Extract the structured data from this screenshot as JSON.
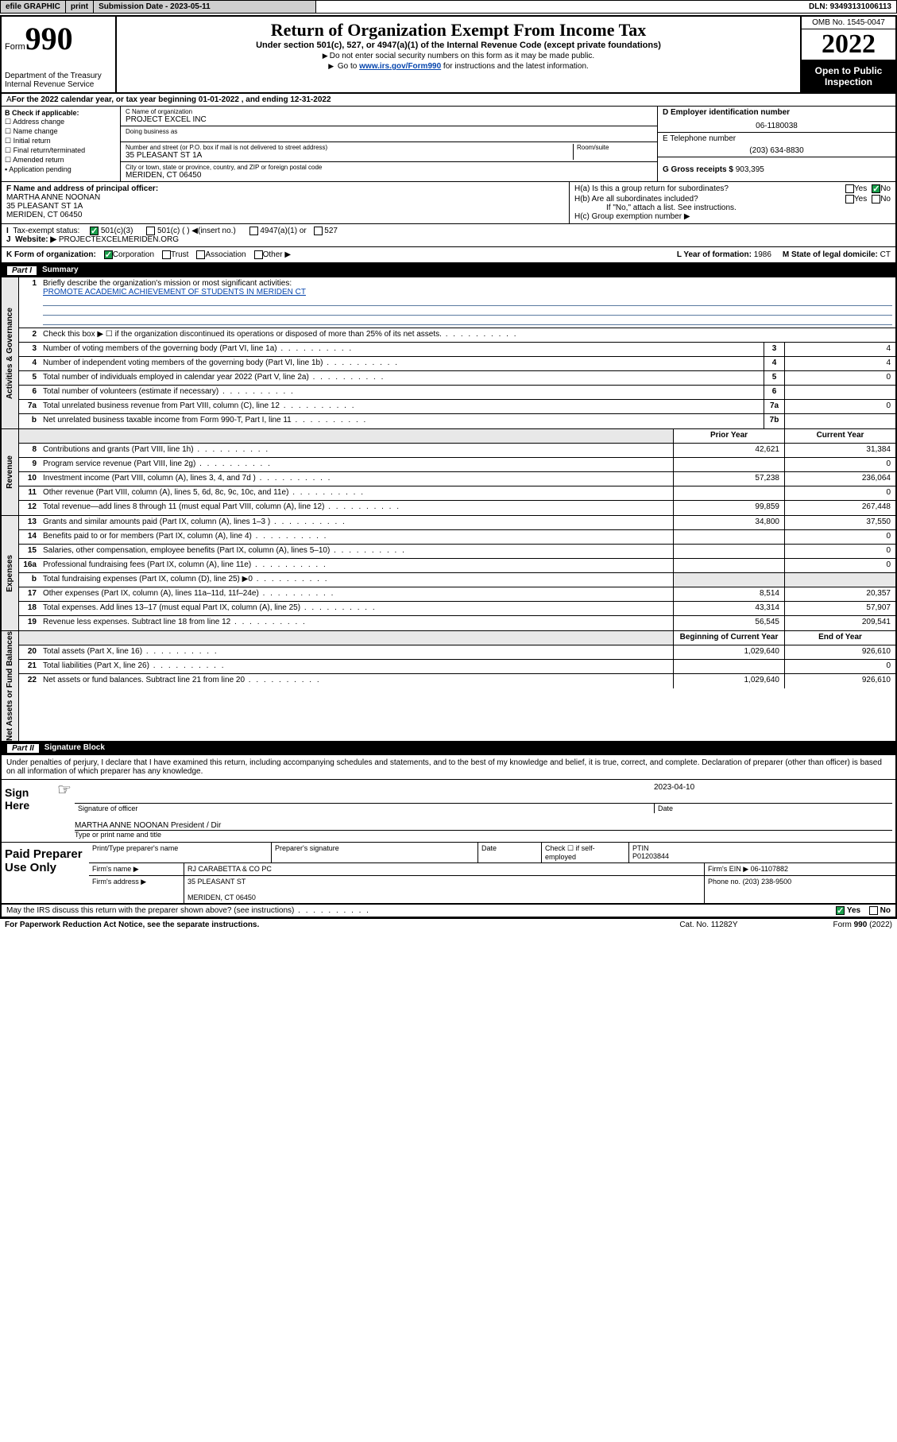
{
  "topbar": {
    "efile": "efile GRAPHIC",
    "print": "print",
    "submission_label": "Submission Date - 2023-05-11",
    "dln": "DLN: 93493131006113"
  },
  "header": {
    "form_prefix": "Form",
    "form_number": "990",
    "dept": "Department of the Treasury\nInternal Revenue Service",
    "title": "Return of Organization Exempt From Income Tax",
    "subtitle": "Under section 501(c), 527, or 4947(a)(1) of the Internal Revenue Code (except private foundations)",
    "note1": "Do not enter social security numbers on this form as it may be made public.",
    "note2_a": "Go to ",
    "note2_link": "www.irs.gov/Form990",
    "note2_b": " for instructions and the latest information.",
    "omb": "OMB No. 1545-0047",
    "year": "2022",
    "inspection": "Open to Public Inspection"
  },
  "secA": {
    "text": "For the 2022 calendar year, or tax year beginning 01-01-2022    , and ending 12-31-2022"
  },
  "secB": {
    "title": "B Check if applicable:",
    "items": [
      "Address change",
      "Name change",
      "Initial return",
      "Final return/terminated",
      "Amended return",
      "Application pending"
    ]
  },
  "secC": {
    "name_label": "C Name of organization",
    "name": "PROJECT EXCEL INC",
    "dba_label": "Doing business as",
    "dba": "",
    "addr_label": "Number and street (or P.O. box if mail is not delivered to street address)",
    "room_label": "Room/suite",
    "addr": "35 PLEASANT ST 1A",
    "city_label": "City or town, state or province, country, and ZIP or foreign postal code",
    "city": "MERIDEN, CT  06450"
  },
  "secDEG": {
    "d_label": "D Employer identification number",
    "d": "06-1180038",
    "e_label": "E Telephone number",
    "e": "(203) 634-8830",
    "g_label": "G Gross receipts $",
    "g": "903,395"
  },
  "secF": {
    "label": "F Name and address of principal officer:",
    "name": "MARTHA ANNE NOONAN",
    "addr1": "35 PLEASANT ST 1A",
    "addr2": "MERIDEN, CT  06450"
  },
  "secH": {
    "ha_label": "H(a)  Is this a group return for subordinates?",
    "hb_label": "H(b)  Are all subordinates included?",
    "hb_note": "If \"No,\" attach a list. See instructions.",
    "hc_label": "H(c)  Group exemption number ▶",
    "yes": "Yes",
    "no": "No"
  },
  "secI": {
    "label": "Tax-exempt status:",
    "opts": [
      "501(c)(3)",
      "501(c) (  ) ◀(insert no.)",
      "4947(a)(1) or",
      "527"
    ]
  },
  "secJ": {
    "label": "Website: ▶",
    "value": "PROJECTEXCELMERIDEN.ORG"
  },
  "secK": {
    "label": "K Form of organization:",
    "opts": [
      "Corporation",
      "Trust",
      "Association",
      "Other ▶"
    ],
    "l_label": "L Year of formation:",
    "l_value": "1986",
    "m_label": "M State of legal domicile:",
    "m_value": "CT"
  },
  "part1": {
    "title": "Part I",
    "subtitle": "Summary",
    "sections": [
      {
        "side": "Activities & Governance",
        "rows": [
          {
            "n": "1",
            "t_html": "Briefly describe the organization's mission or most significant activities:\nPROMOTE ACADEMIC ACHIEVEMENT OF STUDENTS IN MERIDEN CT",
            "mission": true
          },
          {
            "n": "2",
            "t": "Check this box ▶ ☐  if the organization discontinued its operations or disposed of more than 25% of its net assets."
          },
          {
            "n": "3",
            "t": "Number of voting members of the governing body (Part VI, line 1a)",
            "box": "3",
            "val": "4"
          },
          {
            "n": "4",
            "t": "Number of independent voting members of the governing body (Part VI, line 1b)",
            "box": "4",
            "val": "4"
          },
          {
            "n": "5",
            "t": "Total number of individuals employed in calendar year 2022 (Part V, line 2a)",
            "box": "5",
            "val": "0"
          },
          {
            "n": "6",
            "t": "Total number of volunteers (estimate if necessary)",
            "box": "6",
            "val": ""
          },
          {
            "n": "7a",
            "t": "Total unrelated business revenue from Part VIII, column (C), line 12",
            "box": "7a",
            "val": "0"
          },
          {
            "n": "b",
            "t": "Net unrelated business taxable income from Form 990-T, Part I, line 11",
            "box": "7b",
            "val": ""
          }
        ]
      },
      {
        "side": "Revenue",
        "header": {
          "c1": "Prior Year",
          "c2": "Current Year"
        },
        "rows": [
          {
            "n": "8",
            "t": "Contributions and grants (Part VIII, line 1h)",
            "v1": "42,621",
            "v2": "31,384"
          },
          {
            "n": "9",
            "t": "Program service revenue (Part VIII, line 2g)",
            "v1": "",
            "v2": "0"
          },
          {
            "n": "10",
            "t": "Investment income (Part VIII, column (A), lines 3, 4, and 7d )",
            "v1": "57,238",
            "v2": "236,064"
          },
          {
            "n": "11",
            "t": "Other revenue (Part VIII, column (A), lines 5, 6d, 8c, 9c, 10c, and 11e)",
            "v1": "",
            "v2": "0"
          },
          {
            "n": "12",
            "t": "Total revenue—add lines 8 through 11 (must equal Part VIII, column (A), line 12)",
            "v1": "99,859",
            "v2": "267,448"
          }
        ]
      },
      {
        "side": "Expenses",
        "rows": [
          {
            "n": "13",
            "t": "Grants and similar amounts paid (Part IX, column (A), lines 1–3 )",
            "v1": "34,800",
            "v2": "37,550"
          },
          {
            "n": "14",
            "t": "Benefits paid to or for members (Part IX, column (A), line 4)",
            "v1": "",
            "v2": "0"
          },
          {
            "n": "15",
            "t": "Salaries, other compensation, employee benefits (Part IX, column (A), lines 5–10)",
            "v1": "",
            "v2": "0"
          },
          {
            "n": "16a",
            "t": "Professional fundraising fees (Part IX, column (A), line 11e)",
            "v1": "",
            "v2": "0"
          },
          {
            "n": "b",
            "t": "Total fundraising expenses (Part IX, column (D), line 25) ▶0",
            "shade12": true
          },
          {
            "n": "17",
            "t": "Other expenses (Part IX, column (A), lines 11a–11d, 11f–24e)",
            "v1": "8,514",
            "v2": "20,357"
          },
          {
            "n": "18",
            "t": "Total expenses. Add lines 13–17 (must equal Part IX, column (A), line 25)",
            "v1": "43,314",
            "v2": "57,907"
          },
          {
            "n": "19",
            "t": "Revenue less expenses. Subtract line 18 from line 12",
            "v1": "56,545",
            "v2": "209,541"
          }
        ]
      },
      {
        "side": "Net Assets or Fund Balances",
        "header": {
          "c1": "Beginning of Current Year",
          "c2": "End of Year"
        },
        "rows": [
          {
            "n": "20",
            "t": "Total assets (Part X, line 16)",
            "v1": "1,029,640",
            "v2": "926,610"
          },
          {
            "n": "21",
            "t": "Total liabilities (Part X, line 26)",
            "v1": "",
            "v2": "0"
          },
          {
            "n": "22",
            "t": "Net assets or fund balances. Subtract line 21 from line 20",
            "v1": "1,029,640",
            "v2": "926,610"
          }
        ]
      }
    ]
  },
  "part2": {
    "title": "Part II",
    "subtitle": "Signature Block",
    "decl": "Under penalties of perjury, I declare that I have examined this return, including accompanying schedules and statements, and to the best of my knowledge and belief, it is true, correct, and complete. Declaration of preparer (other than officer) is based on all information of which preparer has any knowledge."
  },
  "sign": {
    "here": "Sign Here",
    "sig_label": "Signature of officer",
    "date": "2023-04-10",
    "date_label": "Date",
    "name": "MARTHA ANNE NOONAN  President / Dir",
    "name_label": "Type or print name and title"
  },
  "preparer": {
    "side": "Paid Preparer Use Only",
    "r1": {
      "c1": "Print/Type preparer's name",
      "c2": "Preparer's signature",
      "c3": "Date",
      "c4a": "Check ☐ if self-employed",
      "c5a": "PTIN",
      "c5b": "P01203844"
    },
    "r2": {
      "a": "Firm's name    ▶",
      "b": "RJ CARABETTA & CO PC",
      "c": "Firm's EIN ▶",
      "d": "06-1107882"
    },
    "r3": {
      "a": "Firm's address ▶",
      "b": "35 PLEASANT ST",
      "b2": "MERIDEN, CT  06450",
      "c": "Phone no.",
      "d": "(203) 238-9500"
    }
  },
  "footer": {
    "q": "May the IRS discuss this return with the preparer shown above? (see instructions)",
    "yes": "Yes",
    "no": "No",
    "paperwork": "For Paperwork Reduction Act Notice, see the separate instructions.",
    "cat": "Cat. No. 11282Y",
    "form": "Form 990 (2022)"
  },
  "colors": {
    "link": "#0645ad",
    "check_green": "#1a9e4b",
    "shade": "#e8e8e8",
    "mission_line": "#5a7aa0"
  }
}
